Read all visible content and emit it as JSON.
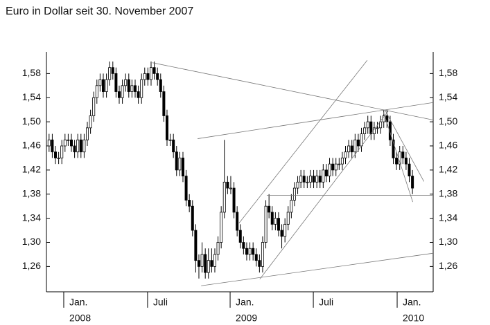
{
  "chart_data": {
    "type": "candlestick",
    "title": "Euro in Dollar seit 30. November 2007",
    "xlim": [
      -0.83,
      120.5
    ],
    "xticks": [
      {
        "value": 4.6,
        "label": "Jan."
      },
      {
        "value": 30.9,
        "label": "Juli"
      },
      {
        "value": 56.8,
        "label": "Jan."
      },
      {
        "value": 82.9,
        "label": "Juli"
      },
      {
        "value": 109.2,
        "label": "Jan."
      }
    ],
    "x_secondary_labels": [
      {
        "value": 4.6,
        "label": "2008"
      },
      {
        "value": 56.8,
        "label": "2009"
      },
      {
        "value": 109.2,
        "label": "2010"
      }
    ],
    "ylim": [
      1.218,
      1.616
    ],
    "yticks": [
      {
        "value": 1.26,
        "label": "1,26"
      },
      {
        "value": 1.3,
        "label": "1,30"
      },
      {
        "value": 1.34,
        "label": "1,34"
      },
      {
        "value": 1.38,
        "label": "1,38"
      },
      {
        "value": 1.42,
        "label": "1,42"
      },
      {
        "value": 1.46,
        "label": "1,46"
      },
      {
        "value": 1.5,
        "label": "1,50"
      },
      {
        "value": 1.54,
        "label": "1,54"
      },
      {
        "value": 1.58,
        "label": "1,58"
      }
    ],
    "right_axis": true,
    "up_color": "#ffffff",
    "down_color": "#000000",
    "open": [
      1.46,
      1.47,
      1.45,
      1.44,
      1.44,
      1.46,
      1.47,
      1.47,
      1.46,
      1.45,
      1.47,
      1.45,
      1.47,
      1.49,
      1.51,
      1.54,
      1.56,
      1.57,
      1.55,
      1.57,
      1.59,
      1.58,
      1.55,
      1.54,
      1.56,
      1.57,
      1.55,
      1.56,
      1.55,
      1.54,
      1.57,
      1.58,
      1.57,
      1.59,
      1.58,
      1.57,
      1.55,
      1.51,
      1.47,
      1.47,
      1.45,
      1.42,
      1.44,
      1.41,
      1.37,
      1.36,
      1.32,
      1.27,
      1.26,
      1.28,
      1.25,
      1.27,
      1.26,
      1.28,
      1.3,
      1.35,
      1.4,
      1.39,
      1.39,
      1.35,
      1.32,
      1.3,
      1.29,
      1.28,
      1.29,
      1.28,
      1.27,
      1.26,
      1.3,
      1.36,
      1.35,
      1.33,
      1.34,
      1.32,
      1.31,
      1.33,
      1.35,
      1.37,
      1.39,
      1.4,
      1.41,
      1.4,
      1.4,
      1.41,
      1.4,
      1.41,
      1.4,
      1.42,
      1.41,
      1.43,
      1.42,
      1.43,
      1.43,
      1.44,
      1.45,
      1.46,
      1.45,
      1.47,
      1.46,
      1.48,
      1.49,
      1.5,
      1.48,
      1.49,
      1.49,
      1.5,
      1.51,
      1.5,
      1.47,
      1.44,
      1.43,
      1.45,
      1.44,
      1.43,
      1.41
    ],
    "high": [
      1.48,
      1.48,
      1.46,
      1.45,
      1.47,
      1.48,
      1.48,
      1.48,
      1.47,
      1.48,
      1.48,
      1.48,
      1.5,
      1.52,
      1.55,
      1.57,
      1.58,
      1.58,
      1.58,
      1.6,
      1.6,
      1.59,
      1.56,
      1.57,
      1.58,
      1.58,
      1.57,
      1.57,
      1.56,
      1.58,
      1.59,
      1.59,
      1.6,
      1.6,
      1.59,
      1.58,
      1.56,
      1.52,
      1.48,
      1.48,
      1.46,
      1.45,
      1.45,
      1.42,
      1.38,
      1.37,
      1.33,
      1.28,
      1.3,
      1.29,
      1.29,
      1.29,
      1.29,
      1.31,
      1.36,
      1.47,
      1.41,
      1.41,
      1.4,
      1.36,
      1.33,
      1.31,
      1.3,
      1.3,
      1.3,
      1.29,
      1.28,
      1.31,
      1.37,
      1.38,
      1.36,
      1.35,
      1.35,
      1.33,
      1.34,
      1.36,
      1.38,
      1.4,
      1.41,
      1.42,
      1.42,
      1.41,
      1.42,
      1.42,
      1.42,
      1.42,
      1.43,
      1.43,
      1.44,
      1.44,
      1.44,
      1.44,
      1.45,
      1.46,
      1.47,
      1.47,
      1.48,
      1.48,
      1.49,
      1.5,
      1.51,
      1.51,
      1.5,
      1.5,
      1.51,
      1.52,
      1.52,
      1.51,
      1.48,
      1.45,
      1.46,
      1.46,
      1.45,
      1.44,
      1.42
    ],
    "low": [
      1.45,
      1.44,
      1.43,
      1.43,
      1.43,
      1.45,
      1.46,
      1.45,
      1.44,
      1.44,
      1.44,
      1.44,
      1.46,
      1.48,
      1.5,
      1.53,
      1.55,
      1.54,
      1.54,
      1.56,
      1.57,
      1.54,
      1.53,
      1.53,
      1.55,
      1.54,
      1.54,
      1.54,
      1.53,
      1.53,
      1.56,
      1.56,
      1.56,
      1.57,
      1.56,
      1.54,
      1.5,
      1.46,
      1.46,
      1.44,
      1.41,
      1.41,
      1.4,
      1.36,
      1.35,
      1.31,
      1.25,
      1.24,
      1.25,
      1.24,
      1.24,
      1.25,
      1.25,
      1.27,
      1.29,
      1.34,
      1.38,
      1.38,
      1.34,
      1.31,
      1.29,
      1.28,
      1.27,
      1.27,
      1.27,
      1.26,
      1.25,
      1.25,
      1.29,
      1.34,
      1.32,
      1.32,
      1.31,
      1.29,
      1.3,
      1.32,
      1.34,
      1.36,
      1.38,
      1.39,
      1.39,
      1.39,
      1.39,
      1.39,
      1.39,
      1.39,
      1.39,
      1.4,
      1.4,
      1.41,
      1.41,
      1.42,
      1.42,
      1.43,
      1.44,
      1.44,
      1.44,
      1.45,
      1.45,
      1.47,
      1.48,
      1.47,
      1.47,
      1.48,
      1.48,
      1.49,
      1.49,
      1.46,
      1.43,
      1.42,
      1.42,
      1.43,
      1.42,
      1.4,
      1.38
    ],
    "close": [
      1.47,
      1.45,
      1.44,
      1.44,
      1.46,
      1.47,
      1.47,
      1.46,
      1.45,
      1.47,
      1.45,
      1.47,
      1.49,
      1.51,
      1.54,
      1.56,
      1.57,
      1.55,
      1.57,
      1.59,
      1.58,
      1.55,
      1.54,
      1.56,
      1.57,
      1.55,
      1.56,
      1.55,
      1.54,
      1.57,
      1.58,
      1.57,
      1.59,
      1.58,
      1.57,
      1.55,
      1.51,
      1.47,
      1.47,
      1.45,
      1.42,
      1.44,
      1.41,
      1.37,
      1.36,
      1.32,
      1.27,
      1.26,
      1.28,
      1.25,
      1.27,
      1.26,
      1.28,
      1.3,
      1.35,
      1.4,
      1.39,
      1.39,
      1.35,
      1.32,
      1.3,
      1.29,
      1.28,
      1.29,
      1.28,
      1.27,
      1.26,
      1.3,
      1.36,
      1.35,
      1.33,
      1.34,
      1.32,
      1.31,
      1.33,
      1.35,
      1.37,
      1.39,
      1.4,
      1.41,
      1.4,
      1.4,
      1.41,
      1.4,
      1.41,
      1.4,
      1.42,
      1.41,
      1.43,
      1.42,
      1.43,
      1.43,
      1.44,
      1.45,
      1.46,
      1.45,
      1.47,
      1.46,
      1.48,
      1.49,
      1.5,
      1.48,
      1.49,
      1.49,
      1.5,
      1.51,
      1.5,
      1.47,
      1.44,
      1.43,
      1.45,
      1.44,
      1.43,
      1.41,
      1.39
    ],
    "trend_lines": [
      {
        "from": [
          32.4,
          1.598
        ],
        "to": [
          120.5,
          1.503
        ]
      },
      {
        "from": [
          46.6,
          1.472
        ],
        "to": [
          120.5,
          1.532
        ]
      },
      {
        "from": [
          47.7,
          1.228
        ],
        "to": [
          120.5,
          1.282
        ]
      },
      {
        "from": [
          59.6,
          1.332
        ],
        "to": [
          99.8,
          1.602
        ]
      },
      {
        "from": [
          66.1,
          1.239
        ],
        "to": [
          106.4,
          1.518
        ]
      },
      {
        "from": [
          105.3,
          1.52
        ],
        "to": [
          117.6,
          1.401
        ]
      },
      {
        "from": [
          104.9,
          1.516
        ],
        "to": [
          114.1,
          1.367
        ]
      },
      {
        "from": [
          68.3,
          1.378
        ],
        "to": [
          120.5,
          1.378
        ]
      }
    ]
  }
}
